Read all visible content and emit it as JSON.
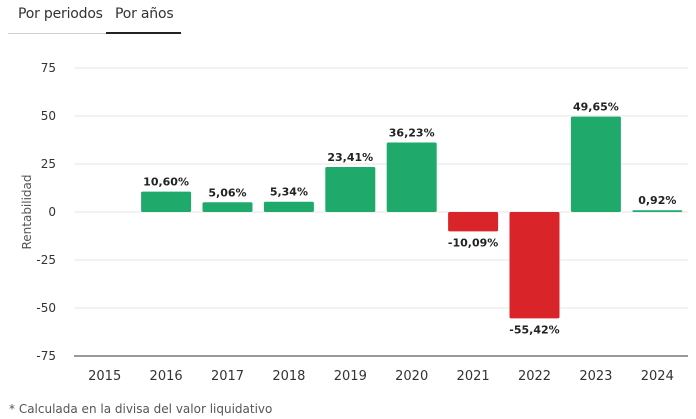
{
  "tabs": [
    {
      "label": "Por periodos",
      "active": false
    },
    {
      "label": "Por años",
      "active": true
    }
  ],
  "footnote": "* Calculada en la divisa del valor liquidativo",
  "colors": {
    "positive": "#1faa6b",
    "negative": "#d9252a",
    "grid": "#e6e6e6",
    "axis": "#333333"
  },
  "chart_data": {
    "type": "bar",
    "title": "",
    "xlabel": "",
    "ylabel": "Rentabilidad",
    "categories": [
      "2015",
      "2016",
      "2017",
      "2018",
      "2019",
      "2020",
      "2021",
      "2022",
      "2023",
      "2024"
    ],
    "values": [
      null,
      10.6,
      5.06,
      5.34,
      23.41,
      36.23,
      -10.09,
      -55.42,
      49.65,
      0.92
    ],
    "data_labels": [
      "",
      "10,60%",
      "5,06%",
      "5,34%",
      "23,41%",
      "36,23%",
      "-10,09%",
      "-55,42%",
      "49,65%",
      "0,92%"
    ],
    "yticks": [
      75,
      50,
      25,
      0,
      -25,
      -50,
      -75
    ],
    "ytick_labels": [
      "75",
      "50",
      "25",
      "0",
      "-25",
      "-50",
      "-75"
    ],
    "ylim": [
      -75,
      75
    ],
    "grid": true,
    "legend": "none"
  }
}
